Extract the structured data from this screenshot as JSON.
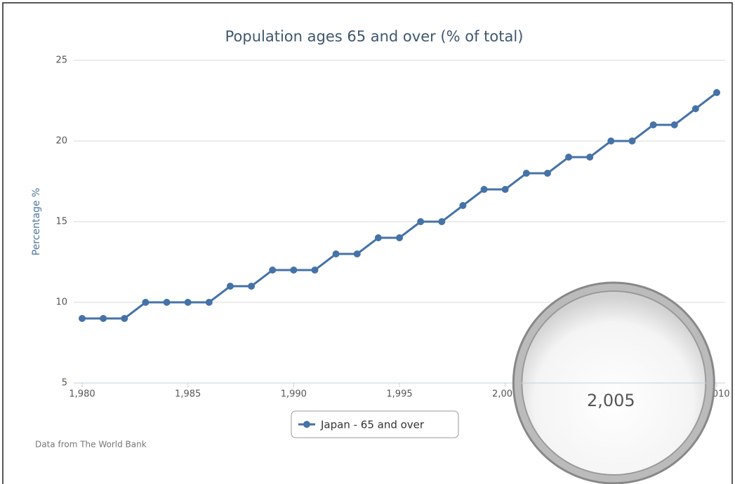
{
  "chart_data": {
    "type": "line",
    "title": "Population ages 65 and over (% of total)",
    "y_label": "Percentage %",
    "source": "Data from The World Bank",
    "x": [
      1980,
      1981,
      1982,
      1983,
      1984,
      1985,
      1986,
      1987,
      1988,
      1989,
      1990,
      1991,
      1992,
      1993,
      1994,
      1995,
      1996,
      1997,
      1998,
      1999,
      2000,
      2001,
      2002,
      2003,
      2004,
      2005,
      2006,
      2007,
      2008,
      2009,
      2010
    ],
    "series": [
      {
        "name": "Japan - 65 and over",
        "color": "#4572a7",
        "values": [
          9,
          9,
          9,
          10,
          10,
          10,
          10,
          11,
          11,
          12,
          12,
          12,
          13,
          13,
          14,
          14,
          15,
          15,
          16,
          17,
          17,
          18,
          18,
          19,
          19,
          20,
          20,
          21,
          21,
          22,
          23
        ]
      }
    ],
    "xlim": [
      1980,
      2010
    ],
    "xticks": [
      {
        "value": 1980,
        "label": "1,980"
      },
      {
        "value": 1985,
        "label": "1,985"
      },
      {
        "value": 1990,
        "label": "1,990"
      },
      {
        "value": 1995,
        "label": "1,995"
      },
      {
        "value": 2000,
        "label": "2,000"
      },
      {
        "value": 2005,
        "label": "2,005"
      },
      {
        "value": 2010,
        "label": "2,010"
      }
    ],
    "ylim": [
      5,
      25
    ],
    "yticks": [
      5,
      10,
      15,
      20,
      25
    ],
    "grid": true,
    "magnified_tick": 5
  }
}
